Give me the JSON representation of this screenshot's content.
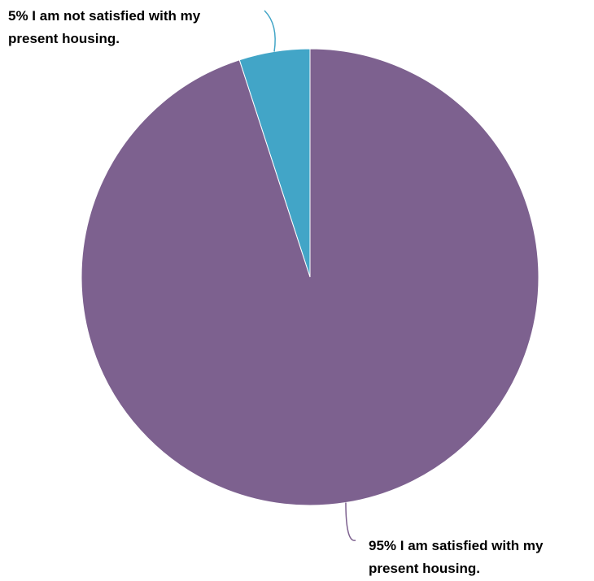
{
  "chart_data": {
    "type": "pie",
    "slices": [
      {
        "percent": 5,
        "label_lines": [
          "5% I am not satisfied with my",
          "present housing."
        ],
        "color": "#42a5c7"
      },
      {
        "percent": 95,
        "label_lines": [
          "95% I am satisfied with my",
          "present housing."
        ],
        "color": "#7d618f"
      }
    ],
    "start": "12 o'clock",
    "direction": "counterclockwise"
  }
}
